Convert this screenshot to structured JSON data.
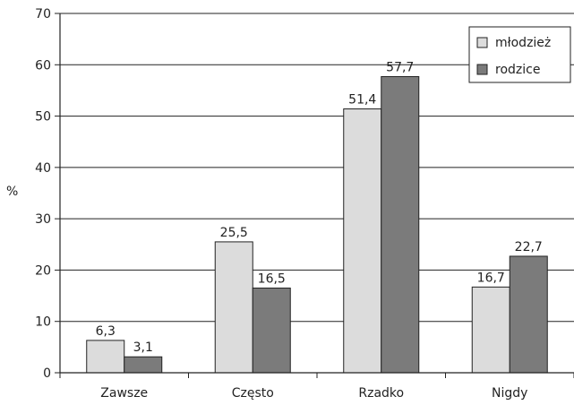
{
  "chart_data": {
    "type": "bar",
    "title": "",
    "xlabel": "",
    "ylabel": "%",
    "ylim": [
      0,
      70
    ],
    "yticks": [
      0,
      10,
      20,
      30,
      40,
      50,
      60,
      70
    ],
    "grid": true,
    "legend_position": "top-right",
    "categories": [
      "Zawsze",
      "Często",
      "Rzadko",
      "Nigdy"
    ],
    "series": [
      {
        "name": "młodzież",
        "color": "#dcdcdc",
        "values": [
          6.3,
          25.5,
          51.4,
          16.7
        ],
        "labels": [
          "6,3",
          "25,5",
          "51,4",
          "16,7"
        ]
      },
      {
        "name": "rodzice",
        "color": "#7b7b7b",
        "values": [
          3.1,
          16.5,
          57.7,
          22.7
        ],
        "labels": [
          "3,1",
          "16,5",
          "57,7",
          "22,7"
        ]
      }
    ]
  }
}
